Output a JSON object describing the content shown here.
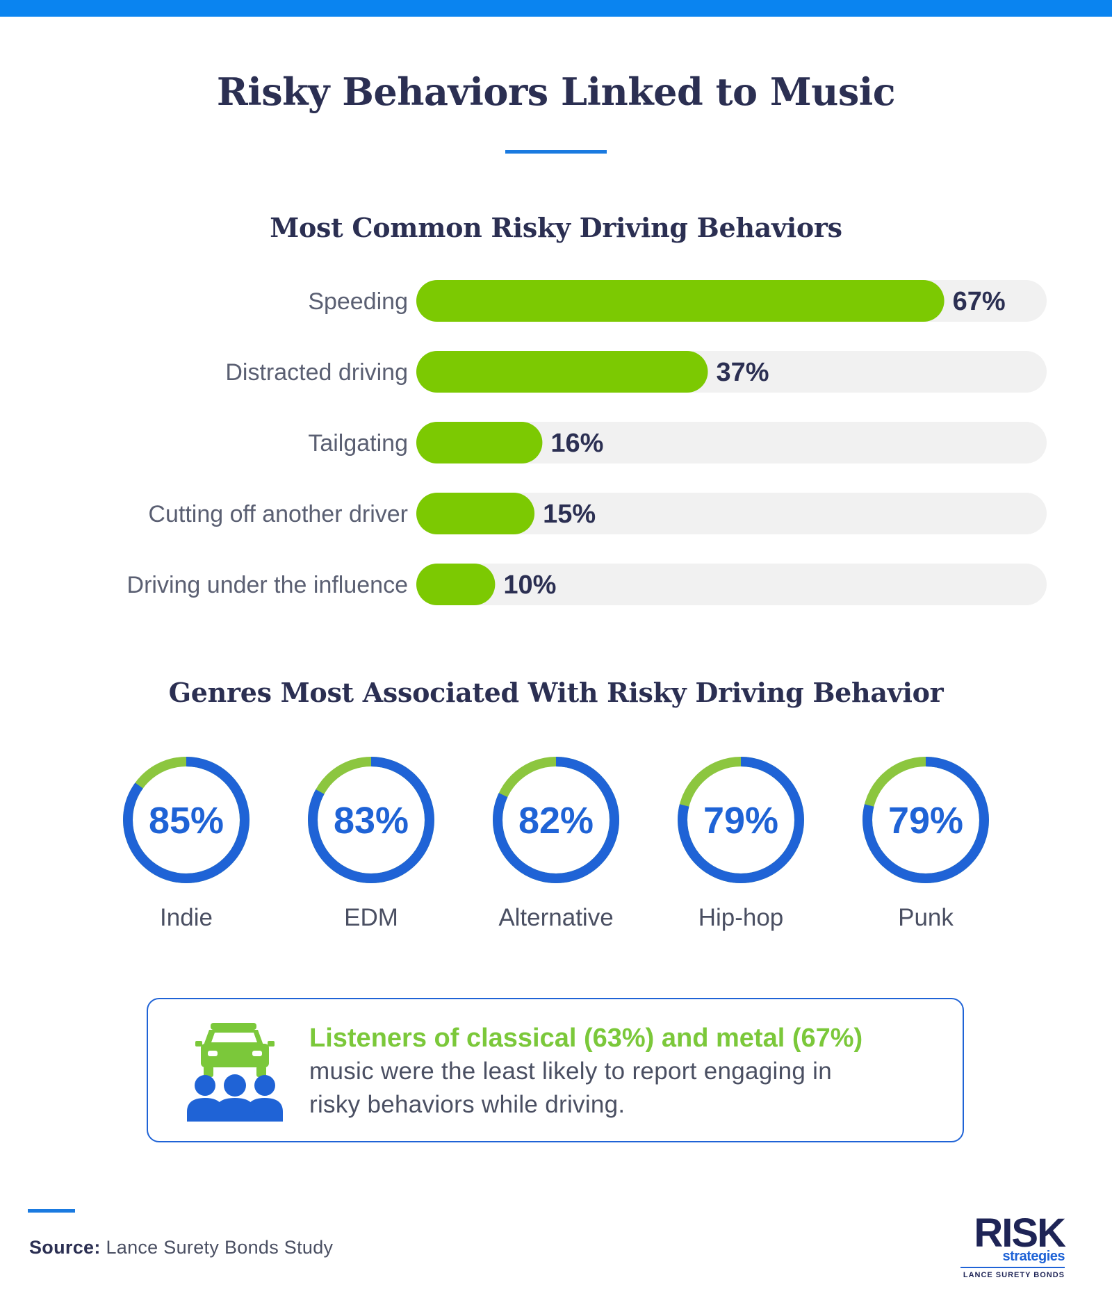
{
  "page": {
    "title": "Risky Behaviors Linked to Music"
  },
  "chart_data": [
    {
      "type": "bar",
      "orientation": "horizontal",
      "title": "Most Common Risky Driving Behaviors",
      "categories": [
        "Speeding",
        "Distracted driving",
        "Tailgating",
        "Cutting off another driver",
        "Driving under the influence"
      ],
      "values": [
        67,
        37,
        16,
        15,
        10
      ],
      "value_labels": [
        "67%",
        "37%",
        "16%",
        "15%",
        "10%"
      ],
      "unit": "%",
      "xlim": [
        0,
        80
      ],
      "grid": false,
      "colors": {
        "bar": "#7cc902",
        "track": "#f1f1f1"
      }
    },
    {
      "type": "pie",
      "style": "donut",
      "title": "Genres Most Associated With Risky Driving Behavior",
      "categories": [
        "Indie",
        "EDM",
        "Alternative",
        "Hip-hop",
        "Punk"
      ],
      "values": [
        85,
        83,
        82,
        79,
        79
      ],
      "value_labels": [
        "85%",
        "83%",
        "82%",
        "79%",
        "79%"
      ],
      "unit": "%",
      "colors": {
        "value": "#1f63d6",
        "remainder": "#8cc63f"
      }
    }
  ],
  "note": {
    "highlight": "Listeners of classical (63%) and metal (67%)",
    "line1": "music were the least likely to report engaging in",
    "line2": "risky behaviors while driving.",
    "icon": "car-with-people-icon"
  },
  "footer": {
    "source_label": "Source:",
    "source_text": "Lance Surety Bonds Study"
  },
  "logo": {
    "name": "RISK",
    "sub": "strategies",
    "tagline": "LANCE SURETY BONDS"
  },
  "colors": {
    "accent_blue": "#1f63d6",
    "top_bar": "#0a84f0",
    "green": "#7cc902",
    "heading": "#2b2f52"
  }
}
